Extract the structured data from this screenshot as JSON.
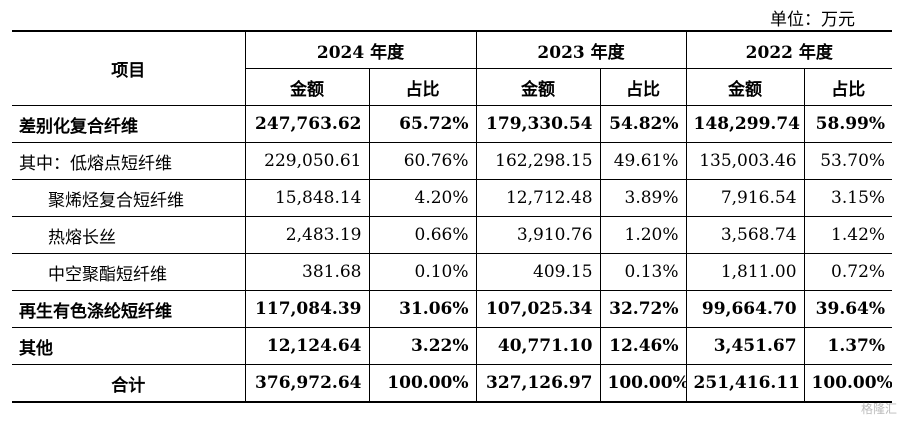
{
  "unit_label": "单位：万元",
  "header": {
    "item": "项目",
    "years": [
      "2024 年度",
      "2023 年度",
      "2022 年度"
    ],
    "amount": "金额",
    "share": "占比"
  },
  "rows": [
    {
      "label": "差别化复合纤维",
      "bold": true,
      "indent": false,
      "values": [
        "247,763.62",
        "65.72%",
        "179,330.54",
        "54.82%",
        "148,299.74",
        "58.99%"
      ]
    },
    {
      "label": "其中：低熔点短纤维",
      "bold": false,
      "indent": false,
      "values": [
        "229,050.61",
        "60.76%",
        "162,298.15",
        "49.61%",
        "135,003.46",
        "53.70%"
      ]
    },
    {
      "label": "聚烯烃复合短纤维",
      "bold": false,
      "indent": true,
      "values": [
        "15,848.14",
        "4.20%",
        "12,712.48",
        "3.89%",
        "7,916.54",
        "3.15%"
      ]
    },
    {
      "label": "热熔长丝",
      "bold": false,
      "indent": true,
      "values": [
        "2,483.19",
        "0.66%",
        "3,910.76",
        "1.20%",
        "3,568.74",
        "1.42%"
      ]
    },
    {
      "label": "中空聚酯短纤维",
      "bold": false,
      "indent": true,
      "values": [
        "381.68",
        "0.10%",
        "409.15",
        "0.13%",
        "1,811.00",
        "0.72%"
      ]
    },
    {
      "label": "再生有色涤纶短纤维",
      "bold": true,
      "indent": false,
      "values": [
        "117,084.39",
        "31.06%",
        "107,025.34",
        "32.72%",
        "99,664.70",
        "39.64%"
      ]
    },
    {
      "label": "其他",
      "bold": true,
      "indent": false,
      "values": [
        "12,124.64",
        "3.22%",
        "40,771.10",
        "12.46%",
        "3,451.67",
        "1.37%"
      ]
    },
    {
      "label": "合计",
      "bold": true,
      "indent": false,
      "center": true,
      "values": [
        "376,972.64",
        "100.00%",
        "327,126.97",
        "100.00%",
        "251,416.11",
        "100.00%"
      ]
    }
  ],
  "watermark": "格隆汇"
}
